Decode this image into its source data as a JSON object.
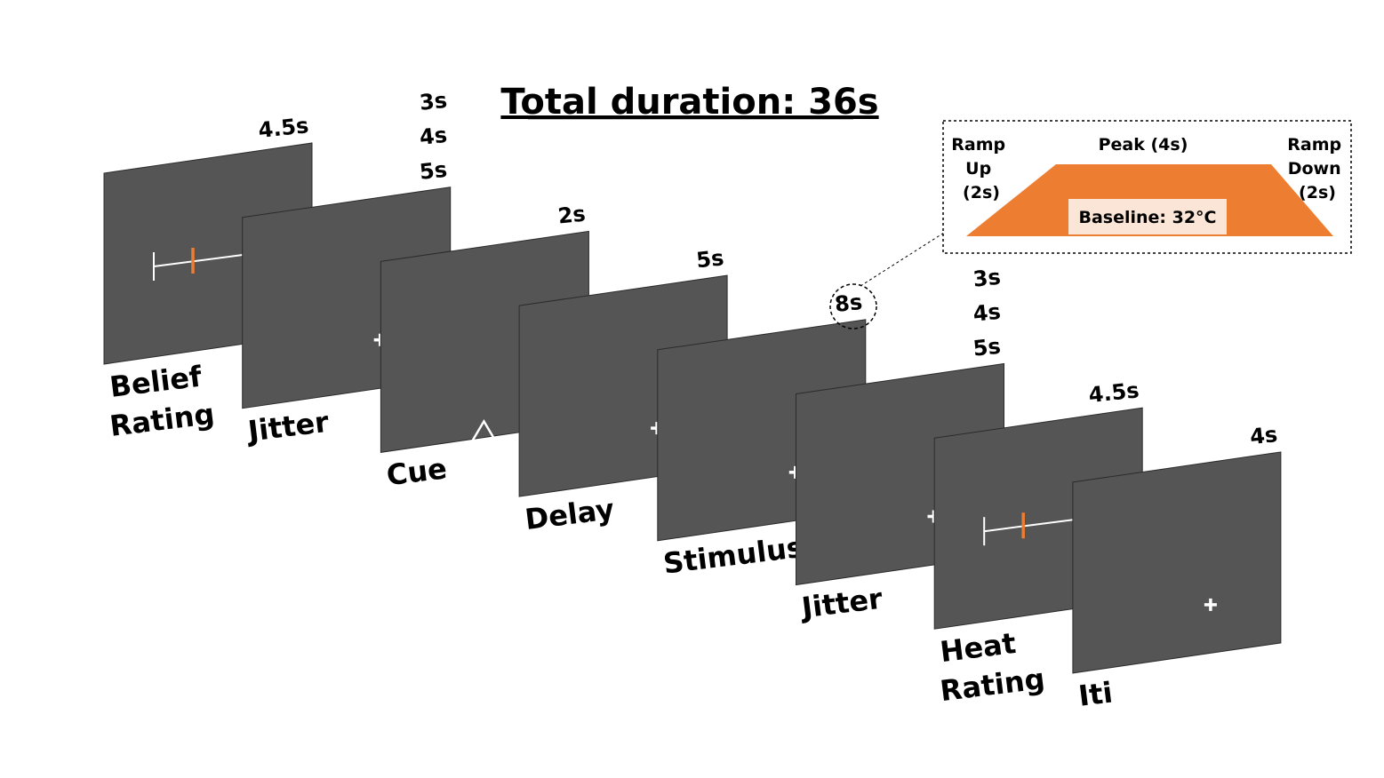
{
  "title": "Total duration: 36s",
  "colors": {
    "screen": "#555555",
    "accent": "#ed7d31",
    "baseline_fill": "#fbe5d6",
    "fixation": "#ffffff"
  },
  "screens": [
    {
      "label": [
        "Belief",
        "Rating"
      ],
      "durations": [
        "4.5s"
      ],
      "content": "rating-scale"
    },
    {
      "label": [
        "Jitter"
      ],
      "durations": [
        "3s",
        "4s",
        "5s"
      ],
      "content": "fixation-cross"
    },
    {
      "label": [
        "Cue"
      ],
      "durations": [
        "2s"
      ],
      "content": "triangle"
    },
    {
      "label": [
        "Delay"
      ],
      "durations": [
        "5s"
      ],
      "content": "fixation-cross"
    },
    {
      "label": [
        "Stimulus"
      ],
      "durations": [
        "8s"
      ],
      "content": "fixation-cross"
    },
    {
      "label": [
        "Jitter"
      ],
      "durations": [
        "3s",
        "4s",
        "5s"
      ],
      "content": "fixation-cross"
    },
    {
      "label": [
        "Heat",
        "Rating"
      ],
      "durations": [
        "4.5s"
      ],
      "content": "rating-scale"
    },
    {
      "label": [
        "Iti"
      ],
      "durations": [
        "4s"
      ],
      "content": "fixation-cross"
    }
  ],
  "inset": {
    "ramp_up": [
      "Ramp",
      "Up",
      "(2s)"
    ],
    "peak": "Peak (4s)",
    "ramp_down": [
      "Ramp",
      "Down",
      "(2s)"
    ],
    "baseline": "Baseline: 32°C"
  }
}
